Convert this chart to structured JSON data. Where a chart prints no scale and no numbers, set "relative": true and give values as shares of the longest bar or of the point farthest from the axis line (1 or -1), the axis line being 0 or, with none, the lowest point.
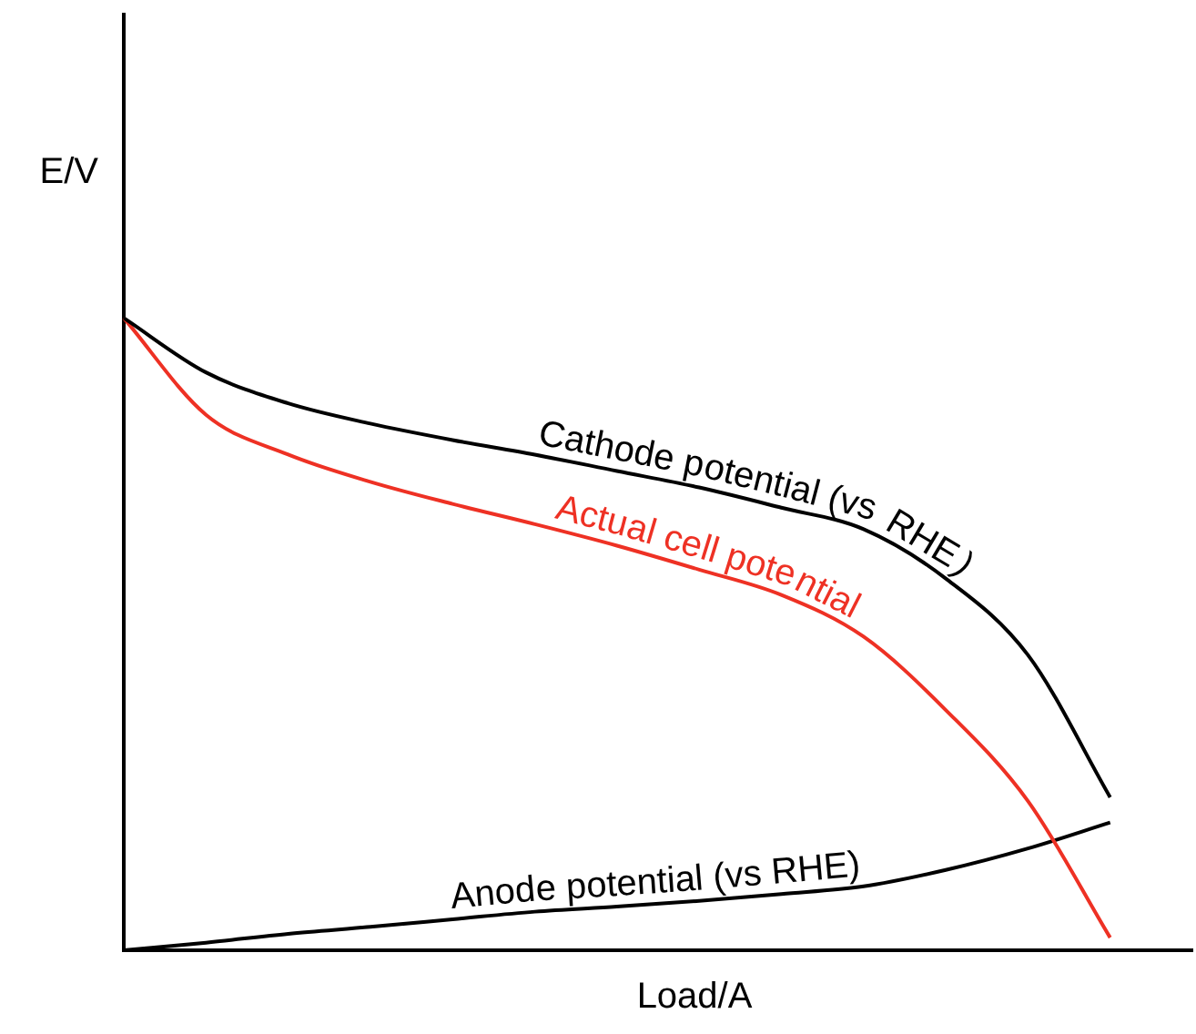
{
  "chart_data": {
    "type": "line",
    "relative": true,
    "xlabel": "Load/A",
    "ylabel": "E/V",
    "legend": false,
    "grid": false,
    "marker": "none",
    "line_style": "solid",
    "categories": [
      null,
      null,
      null,
      null,
      null,
      null,
      null,
      null,
      null,
      null,
      null,
      null,
      null,
      null
    ],
    "series": [
      {
        "name": "Cathode potential (vs RHE)",
        "color": "#000000",
        "values": [
          1,
          0.914,
          0.865,
          0.833,
          0.807,
          0.784,
          0.758,
          0.732,
          0.7,
          0.666,
          0.588,
          0.467,
          0.242,
          null
        ]
      },
      {
        "name": "Actual cell potential",
        "color": "#ee3124",
        "values": [
          1,
          0.847,
          0.784,
          0.741,
          0.706,
          0.674,
          0.64,
          0.602,
          0.562,
          0.496,
          0.38,
          0.236,
          0.02,
          null
        ]
      },
      {
        "name": "Anode potential (vs RHE)",
        "color": "#000000",
        "values": [
          0,
          0.012,
          0.026,
          0.037,
          0.049,
          0.061,
          0.069,
          0.078,
          0.089,
          0.101,
          0.127,
          0.161,
          0.202,
          null
        ]
      }
    ]
  }
}
